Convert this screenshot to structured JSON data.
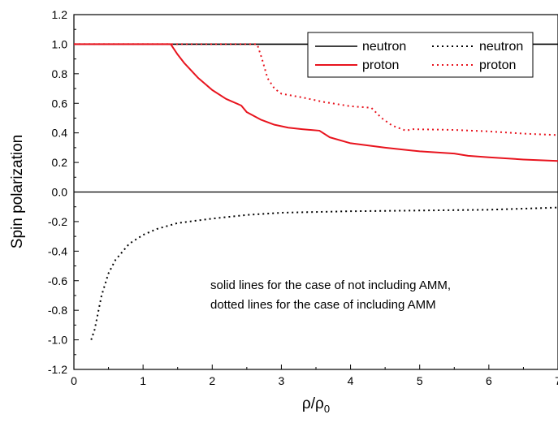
{
  "chart_data": {
    "type": "line",
    "title": "",
    "xlabel": "ρ/ρ",
    "xlabel_subscript": "0",
    "ylabel": "Spin polarization",
    "xlim": [
      0,
      7
    ],
    "ylim": [
      -1.2,
      1.2
    ],
    "grid": false,
    "x_ticks": [
      "0",
      "1",
      "2",
      "3",
      "4",
      "5",
      "6",
      "7"
    ],
    "y_ticks": [
      "-1.2",
      "-1.0",
      "-0.8",
      "-0.6",
      "-0.4",
      "-0.2",
      "0.0",
      "0.2",
      "0.4",
      "0.6",
      "0.8",
      "1.0",
      "1.2"
    ],
    "reference_line": 0,
    "legend_position": "top-right",
    "annotation_lines": [
      "solid lines for the case of not including AMM,",
      "dotted lines for the case of including AMM"
    ],
    "series": [
      {
        "name": "neutron",
        "color": "#000000",
        "style": "solid",
        "x": [
          0,
          7
        ],
        "y": [
          1.0,
          1.0
        ]
      },
      {
        "name": "proton",
        "color": "#e8141e",
        "style": "solid",
        "x": [
          0,
          1.4,
          1.5,
          1.6,
          1.8,
          2.0,
          2.2,
          2.42,
          2.5,
          2.7,
          2.9,
          3.1,
          3.3,
          3.55,
          3.7,
          4.0,
          4.5,
          5.0,
          5.5,
          5.7,
          6.0,
          6.5,
          7.0
        ],
        "y": [
          1.0,
          1.0,
          0.93,
          0.87,
          0.77,
          0.69,
          0.63,
          0.585,
          0.54,
          0.49,
          0.455,
          0.435,
          0.425,
          0.415,
          0.37,
          0.33,
          0.3,
          0.275,
          0.26,
          0.245,
          0.235,
          0.22,
          0.21
        ]
      },
      {
        "name": "neutron",
        "color": "#000000",
        "style": "dotted",
        "x": [
          0.25,
          0.3,
          0.4,
          0.5,
          0.6,
          0.8,
          1.0,
          1.2,
          1.5,
          2.0,
          2.5,
          3.0,
          4.0,
          5.0,
          6.0,
          7.0
        ],
        "y": [
          -1.0,
          -0.93,
          -0.7,
          -0.55,
          -0.46,
          -0.35,
          -0.29,
          -0.25,
          -0.21,
          -0.18,
          -0.155,
          -0.14,
          -0.13,
          -0.125,
          -0.12,
          -0.105
        ]
      },
      {
        "name": "proton",
        "color": "#e8141e",
        "style": "dotted",
        "x": [
          0,
          2.65,
          2.72,
          2.8,
          2.9,
          3.0,
          3.3,
          3.6,
          4.0,
          4.3,
          4.45,
          4.6,
          4.8,
          4.9,
          5.5,
          6.0,
          6.5,
          7.0
        ],
        "y": [
          1.0,
          1.0,
          0.9,
          0.77,
          0.7,
          0.665,
          0.64,
          0.61,
          0.58,
          0.57,
          0.5,
          0.45,
          0.415,
          0.425,
          0.42,
          0.41,
          0.395,
          0.385
        ]
      }
    ]
  }
}
